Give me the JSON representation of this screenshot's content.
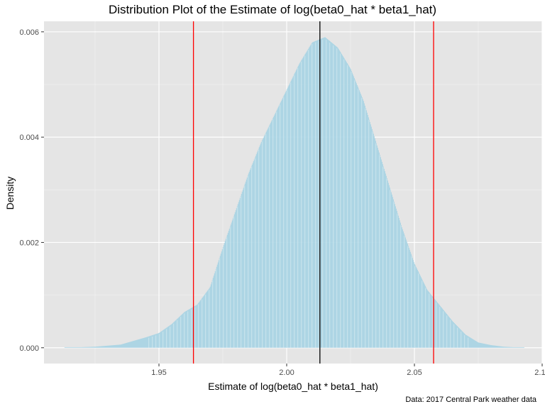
{
  "chart_data": {
    "type": "area",
    "title": "Distribution Plot of the Estimate of log(beta0_hat * beta1_hat)",
    "xlabel": "Estimate of log(beta0_hat * beta1_hat)",
    "ylabel": "Density",
    "caption": "Data: 2017 Central Park weather data",
    "xlim": [
      1.905,
      2.1
    ],
    "ylim": [
      -0.0003,
      0.0062
    ],
    "x_ticks": [
      {
        "value": 1.95,
        "label": "1.95"
      },
      {
        "value": 2.0,
        "label": "2.00"
      },
      {
        "value": 2.05,
        "label": "2.05"
      },
      {
        "value": 2.1,
        "label": "2.10"
      }
    ],
    "y_ticks": [
      {
        "value": 0.0,
        "label": "0.000"
      },
      {
        "value": 0.002,
        "label": "0.002"
      },
      {
        "value": 0.004,
        "label": "0.004"
      },
      {
        "value": 0.006,
        "label": "0.006"
      }
    ],
    "grid": true,
    "fill_color": "#a6d3e3",
    "panel_color": "#e5e5e5",
    "density": {
      "x": [
        1.913,
        1.925,
        1.935,
        1.94,
        1.945,
        1.95,
        1.955,
        1.96,
        1.965,
        1.97,
        1.975,
        1.98,
        1.985,
        1.99,
        1.995,
        2.0,
        2.005,
        2.01,
        2.015,
        2.02,
        2.025,
        2.03,
        2.035,
        2.04,
        2.045,
        2.05,
        2.055,
        2.06,
        2.065,
        2.07,
        2.075,
        2.08,
        2.085,
        2.093
      ],
      "y": [
        0.0,
        2e-05,
        6e-05,
        0.00013,
        0.0002,
        0.00028,
        0.00045,
        0.00068,
        0.00082,
        0.00115,
        0.0019,
        0.0026,
        0.0033,
        0.0039,
        0.0044,
        0.0049,
        0.0054,
        0.0058,
        0.0059,
        0.0057,
        0.0053,
        0.0047,
        0.0039,
        0.0031,
        0.0023,
        0.0016,
        0.0011,
        0.0008,
        0.0005,
        0.00025,
        0.0001,
        5e-05,
        2e-05,
        0.0
      ]
    },
    "vertical_lines": [
      {
        "name": "lower-bound",
        "value": 1.9635,
        "color": "#ff0000"
      },
      {
        "name": "mean",
        "value": 2.013,
        "color": "#000000"
      },
      {
        "name": "upper-bound",
        "value": 2.0575,
        "color": "#ff0000"
      }
    ]
  }
}
